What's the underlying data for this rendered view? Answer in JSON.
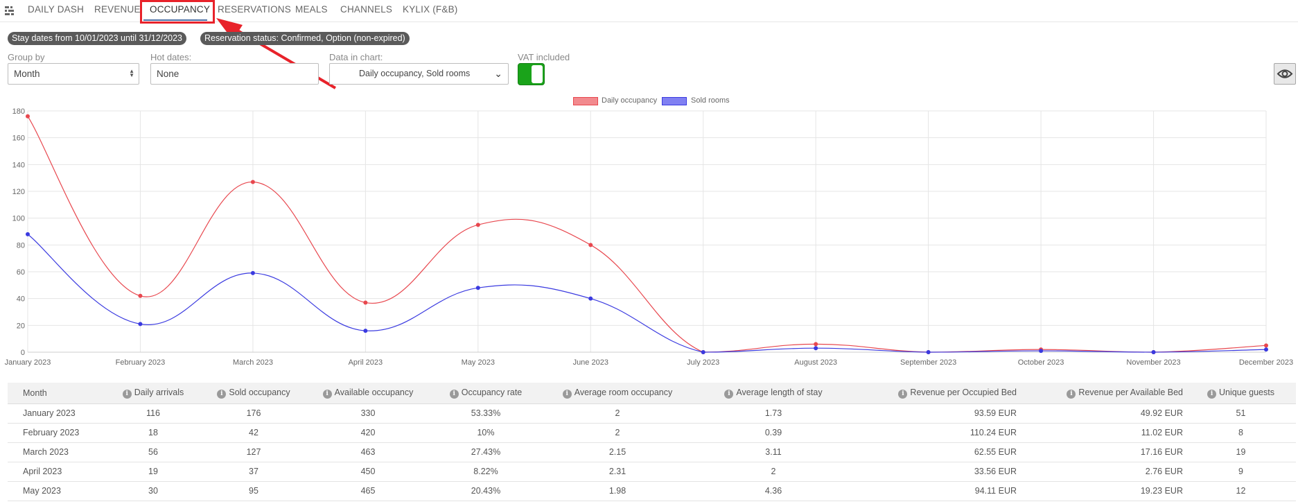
{
  "nav": {
    "logo_icon": "settings-sliders-icon",
    "tabs": [
      {
        "label": "DAILY DASH"
      },
      {
        "label": "REVENUE"
      },
      {
        "label": "OCCUPANCY",
        "active": true
      },
      {
        "label": "RESERVATIONS"
      },
      {
        "label": "MEALS"
      },
      {
        "label": "CHANNELS"
      },
      {
        "label": "KYLIX (F&B)"
      }
    ]
  },
  "filters": {
    "stay_dates": "Stay dates from 10/01/2023 until 31/12/2023",
    "reservation_status": "Reservation status: Confirmed, Option (non-expired)"
  },
  "controls": {
    "group_by_label": "Group by",
    "group_by_value": "Month",
    "hot_dates_label": "Hot dates:",
    "hot_dates_value": "None",
    "data_in_chart_label": "Data in chart:",
    "data_in_chart_value": "Daily occupancy, Sold rooms",
    "vat_label": "VAT included",
    "vat_on": true,
    "eye_icon": "eye-icon"
  },
  "colors": {
    "series_red": "#e8474e",
    "series_blue": "#3a3ae0",
    "toggle_on": "#1aa31a",
    "annotation": "#e8222a"
  },
  "chart_data": {
    "type": "line",
    "categories": [
      "January 2023",
      "February 2023",
      "March 2023",
      "April 2023",
      "May 2023",
      "June 2023",
      "July 2023",
      "August 2023",
      "September 2023",
      "October 2023",
      "November 2023",
      "December 2023"
    ],
    "series": [
      {
        "name": "Daily occupancy",
        "color": "#e8474e",
        "values": [
          176,
          42,
          127,
          37,
          95,
          80,
          0,
          6,
          0,
          2,
          0,
          5
        ]
      },
      {
        "name": "Sold rooms",
        "color": "#3a3ae0",
        "values": [
          88,
          21,
          59,
          16,
          48,
          40,
          0,
          3,
          0,
          1,
          0,
          2
        ]
      }
    ],
    "ylim": [
      0,
      180
    ],
    "yticks": [
      0,
      20,
      40,
      60,
      80,
      100,
      120,
      140,
      160,
      180
    ],
    "grid": true,
    "legend_position": "top-center"
  },
  "table": {
    "columns": [
      "Month",
      "Daily arrivals",
      "Sold occupancy",
      "Available occupancy",
      "Occupancy rate",
      "Average room occupancy",
      "Average length of stay",
      "Revenue per Occupied Bed",
      "Revenue per Available Bed",
      "Unique guests"
    ],
    "rows": [
      [
        "January 2023",
        "116",
        "176",
        "330",
        "53.33%",
        "2",
        "1.73",
        "93.59 EUR",
        "49.92 EUR",
        "51"
      ],
      [
        "February 2023",
        "18",
        "42",
        "420",
        "10%",
        "2",
        "0.39",
        "110.24 EUR",
        "11.02 EUR",
        "8"
      ],
      [
        "March 2023",
        "56",
        "127",
        "463",
        "27.43%",
        "2.15",
        "3.11",
        "62.55 EUR",
        "17.16 EUR",
        "19"
      ],
      [
        "April 2023",
        "19",
        "37",
        "450",
        "8.22%",
        "2.31",
        "2",
        "33.56 EUR",
        "2.76 EUR",
        "9"
      ],
      [
        "May 2023",
        "30",
        "95",
        "465",
        "20.43%",
        "1.98",
        "4.36",
        "94.11 EUR",
        "19.23 EUR",
        "12"
      ]
    ]
  }
}
